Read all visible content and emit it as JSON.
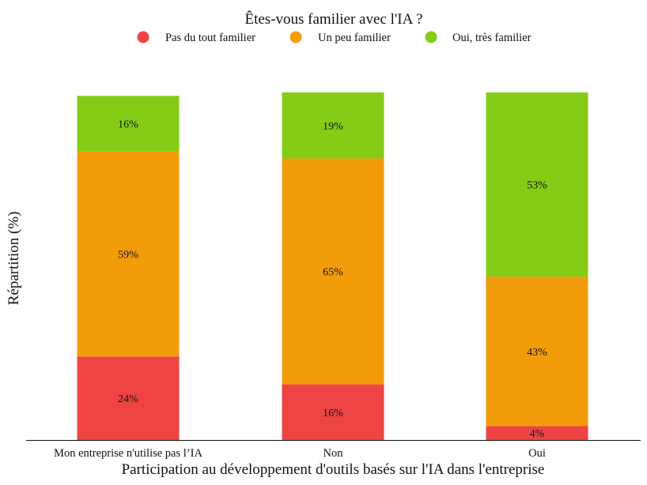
{
  "chart_data": {
    "type": "bar",
    "stacked": true,
    "title": "",
    "legend": {
      "title": "Êtes-vous familier avec l'IA ?",
      "placement": "top-center",
      "marker": "circle"
    },
    "xlabel": "Participation au développement d'outils basés sur l'IA dans l'entreprise",
    "ylabel": "Répartition (%)",
    "ylim": [
      0,
      100
    ],
    "grid": false,
    "categories": [
      "Mon entreprise n'utilise pas l’IA",
      "Non",
      "Oui"
    ],
    "series": [
      {
        "name": "Pas du tout familier",
        "color": "#ef4444",
        "values": [
          24,
          16,
          4
        ],
        "labels": [
          "24%",
          "16%",
          "4%"
        ]
      },
      {
        "name": "Un peu familier",
        "color": "#f39c0b",
        "values": [
          59,
          65,
          43
        ],
        "labels": [
          "59%",
          "65%",
          "43%"
        ]
      },
      {
        "name": "Oui, très familier",
        "color": "#84cc16",
        "values": [
          16,
          19,
          53
        ],
        "labels": [
          "16%",
          "19%",
          "53%"
        ]
      }
    ]
  }
}
